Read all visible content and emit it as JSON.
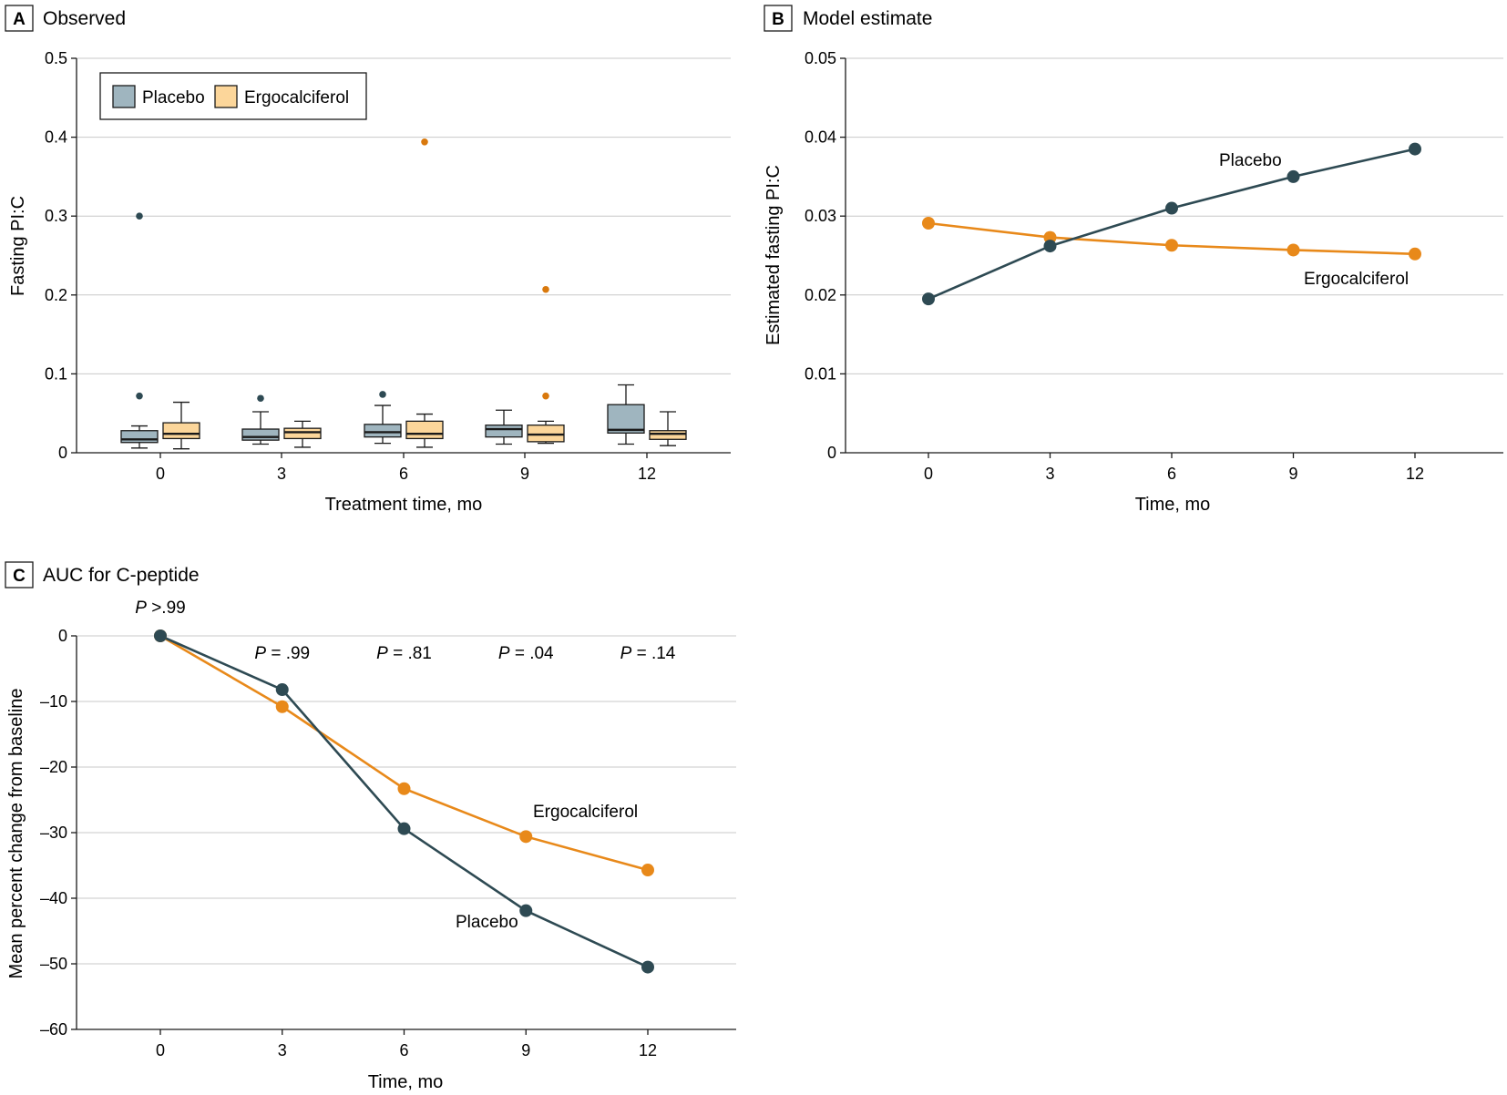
{
  "colors": {
    "placebo_line": "#2e4a53",
    "ergo_line": "#e8891a",
    "placebo_box": "#9fb5bf",
    "ergo_box": "#fcd69a",
    "placebo_outlier": "#2e4a53",
    "ergo_outlier": "#d9790d"
  },
  "chart_data": [
    {
      "id": "A",
      "type": "box",
      "tag": "A",
      "title": "Observed",
      "xlabel": "Treatment time, mo",
      "ylabel": "Fasting PI:C",
      "ylim": [
        0,
        0.5
      ],
      "yticks": [
        0,
        0.1,
        0.2,
        0.3,
        0.4,
        0.5
      ],
      "ytick_labels": [
        "0",
        "0.1",
        "0.2",
        "0.3",
        "0.4",
        "0.5"
      ],
      "categories": [
        "0",
        "3",
        "6",
        "9",
        "12"
      ],
      "legend": [
        "Placebo",
        "Ergocalciferol"
      ],
      "series": [
        {
          "name": "Placebo",
          "boxes": [
            {
              "min": 0.006,
              "q1": 0.013,
              "median": 0.017,
              "q3": 0.028,
              "max": 0.034,
              "outliers": [
                0.072,
                0.3
              ]
            },
            {
              "min": 0.011,
              "q1": 0.016,
              "median": 0.02,
              "q3": 0.03,
              "max": 0.052,
              "outliers": [
                0.069
              ]
            },
            {
              "min": 0.012,
              "q1": 0.02,
              "median": 0.026,
              "q3": 0.036,
              "max": 0.06,
              "outliers": [
                0.074
              ]
            },
            {
              "min": 0.011,
              "q1": 0.02,
              "median": 0.03,
              "q3": 0.035,
              "max": 0.054,
              "outliers": []
            },
            {
              "min": 0.011,
              "q1": 0.025,
              "median": 0.029,
              "q3": 0.061,
              "max": 0.086,
              "outliers": []
            }
          ]
        },
        {
          "name": "Ergocalciferol",
          "boxes": [
            {
              "min": 0.005,
              "q1": 0.018,
              "median": 0.024,
              "q3": 0.038,
              "max": 0.064,
              "outliers": []
            },
            {
              "min": 0.007,
              "q1": 0.018,
              "median": 0.026,
              "q3": 0.031,
              "max": 0.04,
              "outliers": []
            },
            {
              "min": 0.007,
              "q1": 0.018,
              "median": 0.024,
              "q3": 0.04,
              "max": 0.049,
              "outliers": [
                0.394
              ]
            },
            {
              "min": 0.012,
              "q1": 0.014,
              "median": 0.023,
              "q3": 0.035,
              "max": 0.04,
              "outliers": [
                0.072,
                0.207
              ]
            },
            {
              "min": 0.009,
              "q1": 0.017,
              "median": 0.024,
              "q3": 0.028,
              "max": 0.052,
              "outliers": []
            }
          ]
        }
      ]
    },
    {
      "id": "B",
      "type": "line",
      "tag": "B",
      "title": "Model estimate",
      "xlabel": "Time, mo",
      "ylabel": "Estimated fasting PI:C",
      "ylim": [
        0,
        0.05
      ],
      "yticks": [
        0,
        0.01,
        0.02,
        0.03,
        0.04,
        0.05
      ],
      "ytick_labels": [
        "0",
        "0.01",
        "0.02",
        "0.03",
        "0.04",
        "0.05"
      ],
      "x": [
        0,
        3,
        6,
        9,
        12
      ],
      "xtick_labels": [
        "0",
        "3",
        "6",
        "9",
        "12"
      ],
      "series": [
        {
          "name": "Placebo",
          "label": "Placebo",
          "values": [
            0.0195,
            0.0262,
            0.031,
            0.035,
            0.0385
          ]
        },
        {
          "name": "Ergocalciferol",
          "label": "Ergocalciferol",
          "values": [
            0.0291,
            0.0273,
            0.0263,
            0.0257,
            0.0252
          ]
        }
      ]
    },
    {
      "id": "C",
      "type": "line",
      "tag": "C",
      "title": "AUC for C-peptide",
      "xlabel": "Time, mo",
      "ylabel": "Mean percent change from baseline",
      "ylim": [
        -60,
        0
      ],
      "yticks": [
        0,
        -10,
        -20,
        -30,
        -40,
        -50,
        -60
      ],
      "ytick_labels": [
        "0",
        "–10",
        "–20",
        "–30",
        "–40",
        "–50",
        "–60"
      ],
      "x": [
        0,
        3,
        6,
        9,
        12
      ],
      "xtick_labels": [
        "0",
        "3",
        "6",
        "9",
        "12"
      ],
      "series": [
        {
          "name": "Placebo",
          "label": "Placebo",
          "values": [
            0,
            -8.2,
            -29.4,
            -41.9,
            -50.5
          ]
        },
        {
          "name": "Ergocalciferol",
          "label": "Ergocalciferol",
          "values": [
            0,
            -10.8,
            -23.3,
            -30.6,
            -35.7
          ]
        }
      ],
      "annotations": [
        {
          "italic": "P",
          "rest": " >.99"
        },
        {
          "italic": "P",
          "rest": " = .99"
        },
        {
          "italic": "P",
          "rest": " = .81"
        },
        {
          "italic": "P",
          "rest": " = .04"
        },
        {
          "italic": "P",
          "rest": " = .14"
        }
      ]
    }
  ]
}
